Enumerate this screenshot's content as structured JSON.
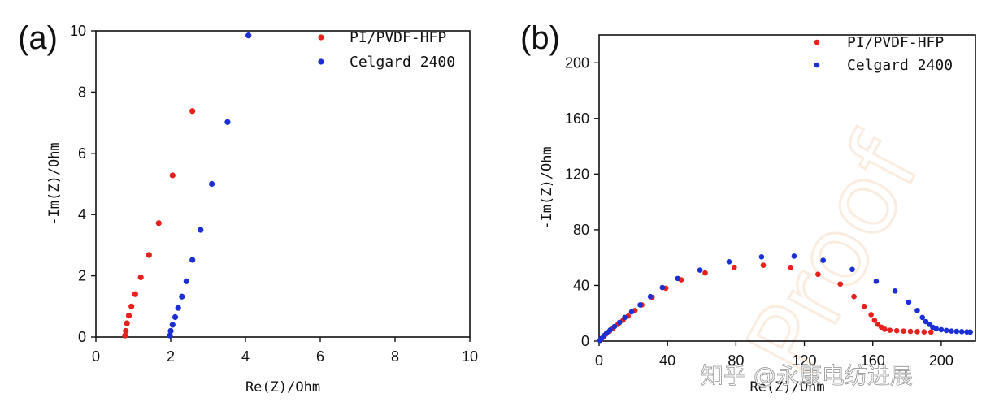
{
  "watermark": "知乎 @永康电纺进展",
  "chart_data": [
    {
      "type": "scatter",
      "panel_label": "(a)",
      "xlabel": "Re(Z)/Ohm",
      "ylabel": "-Im(Z)/Ohm",
      "xlim": [
        0,
        10
      ],
      "ylim": [
        0,
        10
      ],
      "x_ticks": [
        0,
        2,
        4,
        6,
        8,
        10
      ],
      "y_ticks": [
        0,
        2,
        4,
        6,
        8,
        10
      ],
      "grid": false,
      "legend_position": "top-right",
      "series": [
        {
          "name": "PI/PVDF-HFP",
          "color": "#e8201c",
          "points": [
            [
              0.78,
              0.05
            ],
            [
              0.8,
              0.2
            ],
            [
              0.83,
              0.45
            ],
            [
              0.88,
              0.7
            ],
            [
              0.95,
              1.0
            ],
            [
              1.05,
              1.4
            ],
            [
              1.2,
              1.95
            ],
            [
              1.42,
              2.68
            ],
            [
              1.68,
              3.72
            ],
            [
              2.05,
              5.28
            ],
            [
              2.58,
              7.38
            ]
          ]
        },
        {
          "name": "Celgard 2400",
          "color": "#1a2fd4",
          "points": [
            [
              1.98,
              0.05
            ],
            [
              2.0,
              0.2
            ],
            [
              2.05,
              0.4
            ],
            [
              2.12,
              0.65
            ],
            [
              2.2,
              0.95
            ],
            [
              2.3,
              1.32
            ],
            [
              2.42,
              1.82
            ],
            [
              2.58,
              2.52
            ],
            [
              2.8,
              3.5
            ],
            [
              3.1,
              5.0
            ],
            [
              3.52,
              7.02
            ],
            [
              4.08,
              9.85
            ]
          ]
        }
      ]
    },
    {
      "type": "scatter",
      "panel_label": "(b)",
      "xlabel": "Re(Z)/Ohm",
      "ylabel": "-Im(Z)/Ohm",
      "xlim": [
        0,
        220
      ],
      "ylim": [
        0,
        220
      ],
      "x_ticks": [
        0,
        40,
        80,
        120,
        160,
        200
      ],
      "y_ticks": [
        0,
        40,
        80,
        120,
        160,
        200
      ],
      "grid": false,
      "legend_position": "top-right",
      "series": [
        {
          "name": "PI/PVDF-HFP",
          "color": "#e8201c",
          "points": [
            [
              1,
              1
            ],
            [
              2.5,
              3
            ],
            [
              4,
              5
            ],
            [
              6,
              7
            ],
            [
              8,
              9
            ],
            [
              11,
              12
            ],
            [
              14,
              15
            ],
            [
              17,
              18
            ],
            [
              21,
              22
            ],
            [
              25,
              26
            ],
            [
              31,
              31.5
            ],
            [
              39,
              38
            ],
            [
              48,
              44
            ],
            [
              62,
              49
            ],
            [
              79,
              53
            ],
            [
              96,
              54.5
            ],
            [
              112,
              53
            ],
            [
              128,
              48
            ],
            [
              141,
              41
            ],
            [
              149,
              32
            ],
            [
              155,
              25
            ],
            [
              159,
              19
            ],
            [
              161,
              15
            ],
            [
              163,
              12
            ],
            [
              165,
              10
            ],
            [
              167,
              8.5
            ],
            [
              170,
              7.8
            ],
            [
              174,
              7.5
            ],
            [
              178,
              7.2
            ],
            [
              182,
              7
            ],
            [
              186,
              6.8
            ],
            [
              190,
              6.6
            ],
            [
              194,
              6.5
            ]
          ]
        },
        {
          "name": "Celgard 2400",
          "color": "#1a2fd4",
          "points": [
            [
              0.5,
              0.5
            ],
            [
              1.5,
              2
            ],
            [
              3,
              4
            ],
            [
              4.5,
              6
            ],
            [
              6.5,
              8
            ],
            [
              9,
              10.5
            ],
            [
              12,
              13.5
            ],
            [
              15,
              17
            ],
            [
              19,
              21
            ],
            [
              24,
              26
            ],
            [
              30,
              32
            ],
            [
              37,
              38.5
            ],
            [
              46,
              45
            ],
            [
              59,
              51
            ],
            [
              76,
              57
            ],
            [
              95,
              60.5
            ],
            [
              114,
              61
            ],
            [
              131,
              58
            ],
            [
              148,
              51.5
            ],
            [
              162,
              43
            ],
            [
              173,
              36
            ],
            [
              181,
              28
            ],
            [
              186,
              22
            ],
            [
              189,
              17
            ],
            [
              191,
              14
            ],
            [
              193,
              12
            ],
            [
              195,
              10
            ],
            [
              197,
              9
            ],
            [
              200,
              8.2
            ],
            [
              203,
              7.6
            ],
            [
              206,
              7.2
            ],
            [
              209,
              7
            ],
            [
              212,
              6.8
            ],
            [
              215,
              6.6
            ],
            [
              217,
              6.5
            ]
          ]
        }
      ]
    }
  ]
}
